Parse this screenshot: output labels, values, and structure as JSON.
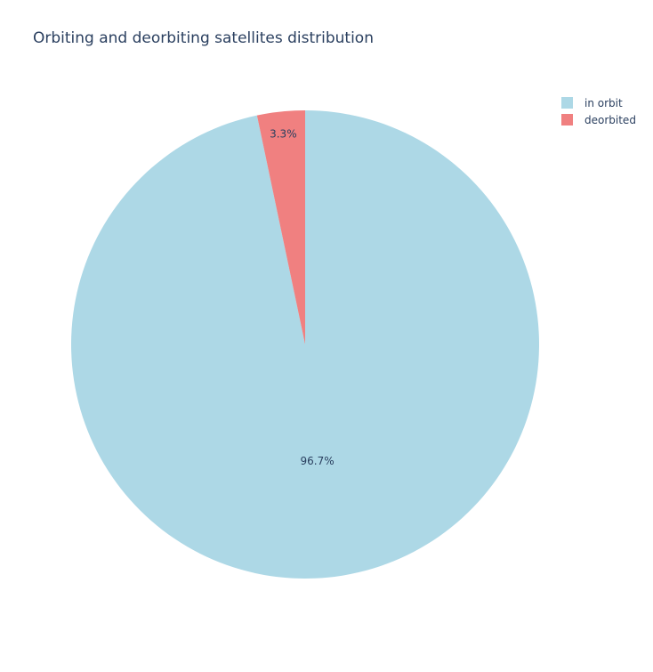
{
  "chart_data": {
    "type": "pie",
    "title": "Orbiting and deorbiting satellites distribution",
    "labels": [
      "in orbit",
      "deorbited"
    ],
    "values": [
      96.7,
      3.3
    ],
    "value_labels": [
      "96.7%",
      "3.3%"
    ],
    "colors": [
      "#add8e6",
      "#f08080"
    ],
    "direction": "clockwise",
    "start_angle": "12 o'clock",
    "legend_position": "top-right"
  }
}
